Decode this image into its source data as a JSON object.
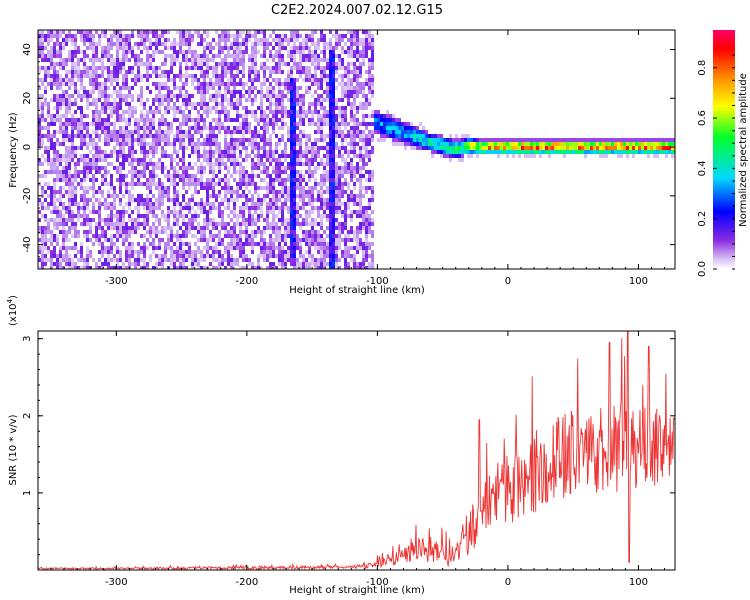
{
  "figure_title": "C2E2.2024.007.02.12.G15",
  "chart_data": [
    {
      "type": "heatmap",
      "title": "C2E2.2024.007.02.12.G15",
      "xlabel": "Height of straight line (km)",
      "ylabel": "Frequency (Hz)",
      "xlim": [
        -360,
        128
      ],
      "ylim": [
        -50,
        48
      ],
      "xticks": [
        -300,
        -200,
        -100,
        0,
        100
      ],
      "xtick_labels": [
        "-300",
        "-200",
        "-100",
        "0",
        "100"
      ],
      "yticks": [
        -40,
        -20,
        0,
        20,
        40
      ],
      "ytick_labels": [
        "-40",
        "-20",
        "0",
        "20",
        "40"
      ],
      "colorbar": {
        "label": "Normalized spectral amplitude",
        "range": [
          0,
          0.95
        ],
        "ticks": [
          0.0,
          0.2,
          0.4,
          0.6,
          0.8
        ],
        "tick_labels": [
          "0.0",
          "0.2",
          "0.4",
          "0.6",
          "0.8"
        ],
        "colormap": [
          "#ffffff",
          "#d9c3f5",
          "#8a2be2",
          "#0000ff",
          "#00d8ff",
          "#00ff2a",
          "#ffff00",
          "#ff8c00",
          "#ff0000",
          "#ff0066"
        ]
      },
      "regions": [
        {
          "description_key": "noise",
          "x_range": [
            -360,
            -103
          ],
          "freq_range": [
            -50,
            48
          ],
          "amplitude": [
            0.0,
            0.15
          ]
        },
        {
          "description_key": "signal",
          "x_range": [
            -103,
            128
          ],
          "amplitude_peak": 0.9
        }
      ],
      "signal_track": {
        "x": [
          -105,
          -90,
          -80,
          -70,
          -60,
          -50,
          -40,
          -30,
          -20,
          0,
          20,
          40,
          60,
          80,
          100,
          128
        ],
        "freq": [
          11,
          8,
          6,
          4,
          2,
          0.5,
          -1,
          0.5,
          0,
          0,
          0,
          0,
          0,
          0,
          0,
          0
        ],
        "halfwidth": [
          5,
          5,
          4.5,
          4.5,
          4,
          4,
          4,
          3.5,
          3,
          3,
          3,
          3,
          3,
          3,
          3,
          3
        ],
        "peak_amplitude": [
          0.35,
          0.4,
          0.4,
          0.45,
          0.5,
          0.5,
          0.55,
          0.7,
          0.85,
          0.9,
          0.9,
          0.9,
          0.9,
          0.9,
          0.9,
          0.9
        ]
      },
      "streaks": [
        {
          "x": -165,
          "freq_top": 28,
          "freq_bottom": -45
        },
        {
          "x": -135,
          "freq_top": 40,
          "freq_bottom": -50
        }
      ]
    },
    {
      "type": "line",
      "xlabel": "Height of straight line (km)",
      "ylabel": "SNR (10 * v/v)",
      "y_scale_label": "(x10",
      "y_scale_exponent": "4",
      "y_scale_suffix": ")",
      "xlim": [
        -360,
        128
      ],
      "ylim": [
        0,
        3.1
      ],
      "xticks": [
        -300,
        -200,
        -100,
        0,
        100
      ],
      "xtick_labels": [
        "-300",
        "-200",
        "-100",
        "0",
        "100"
      ],
      "yticks": [
        1,
        2,
        3
      ],
      "ytick_labels": [
        "1",
        "2",
        "3"
      ],
      "color": "#ee3333",
      "series": [
        {
          "name": "SNR",
          "x": [
            -360,
            -300,
            -200,
            -120,
            -110,
            -100,
            -90,
            -80,
            -70,
            -60,
            -50,
            -45,
            -40,
            -35,
            -30,
            -25,
            -20,
            -15,
            -10,
            -5,
            0,
            10,
            20,
            30,
            40,
            50,
            60,
            70,
            80,
            90,
            100,
            110,
            120,
            128
          ],
          "y": [
            0.02,
            0.02,
            0.03,
            0.04,
            0.05,
            0.08,
            0.12,
            0.18,
            0.25,
            0.28,
            0.22,
            0.15,
            0.2,
            0.35,
            0.5,
            0.6,
            0.75,
            0.85,
            0.95,
            1.0,
            1.05,
            1.15,
            1.25,
            1.35,
            1.45,
            1.5,
            1.55,
            1.58,
            1.6,
            1.62,
            1.6,
            1.58,
            1.55,
            1.55
          ],
          "spread": [
            0.01,
            0.01,
            0.02,
            0.02,
            0.03,
            0.05,
            0.07,
            0.1,
            0.15,
            0.18,
            0.15,
            0.12,
            0.15,
            0.25,
            0.3,
            0.35,
            0.4,
            0.45,
            0.45,
            0.45,
            0.5,
            0.5,
            0.55,
            0.55,
            0.55,
            0.6,
            0.6,
            0.6,
            0.6,
            0.6,
            0.55,
            0.55,
            0.5,
            0.5
          ],
          "peaks": [
            {
              "x": -22,
              "y": 1.95
            },
            {
              "x": 78,
              "y": 2.95
            },
            {
              "x": 92,
              "y": 3.1
            },
            {
              "x": 93,
              "y": 0.1
            },
            {
              "x": 108,
              "y": 2.9
            }
          ]
        }
      ]
    }
  ]
}
